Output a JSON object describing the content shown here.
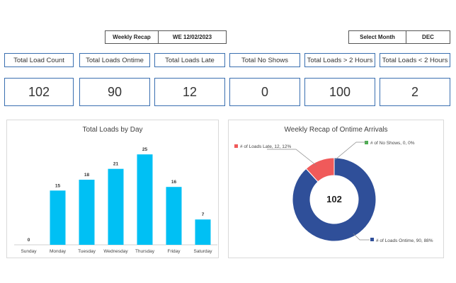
{
  "header": {
    "recap_label": "Weekly Recap",
    "recap_value": "WE 12/02/2023",
    "month_label": "Select Month",
    "month_value": "DEC"
  },
  "kpis": [
    {
      "label": "Total Load Count",
      "value": "102"
    },
    {
      "label": "Total Loads Ontime",
      "value": "90"
    },
    {
      "label": "Total Loads Late",
      "value": "12"
    },
    {
      "label": "Total No Shows",
      "value": "0"
    },
    {
      "label": "Total Loads > 2 Hours",
      "value": "100"
    },
    {
      "label": "Total Loads < 2 Hours",
      "value": "2"
    }
  ],
  "bar_panel": {
    "title": "Total Loads by Day"
  },
  "donut_panel": {
    "title": "Weekly Recap of Ontime Arrivals",
    "center_value": "102",
    "labels": {
      "late": "# of Loads Late, 12, 12%",
      "noshow": "# of No Shows, 0, 0%",
      "ontime": "# of Loads Ontime, 90, 88%"
    }
  },
  "colors": {
    "bar": "#00c0f4",
    "ontime": "#2f4f99",
    "late": "#f05a5a",
    "noshow": "#4caf50",
    "kpi_border": "#3a6fb0"
  },
  "chart_data": [
    {
      "type": "bar",
      "title": "Total Loads by Day",
      "categories": [
        "Sunday",
        "Monday",
        "Tuesday",
        "Wednesday",
        "Thursday",
        "Friday",
        "Saturday"
      ],
      "values": [
        0,
        15,
        18,
        21,
        25,
        16,
        7
      ],
      "ylim": [
        0,
        27
      ]
    },
    {
      "type": "pie",
      "title": "Weekly Recap of Ontime Arrivals",
      "categories": [
        "# of Loads Ontime",
        "# of Loads Late",
        "# of No Shows"
      ],
      "values": [
        90,
        12,
        0
      ],
      "percents": [
        88,
        12,
        0
      ]
    }
  ]
}
